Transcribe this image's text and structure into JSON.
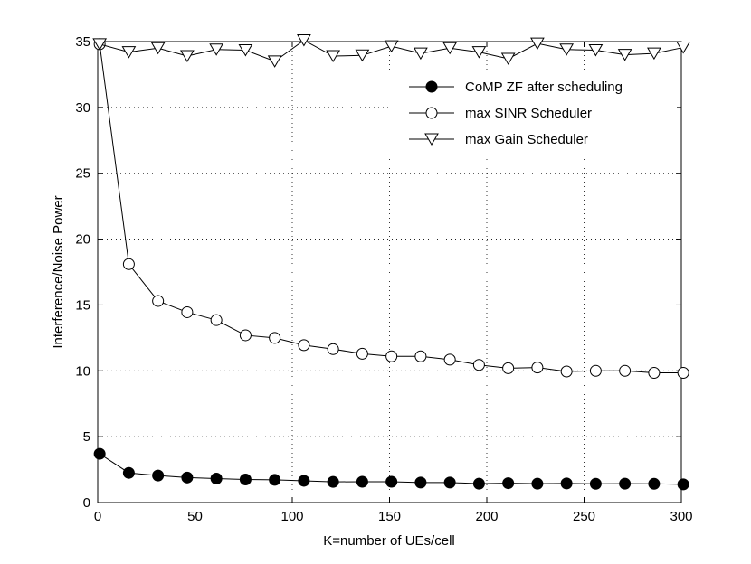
{
  "chart_data": {
    "type": "line",
    "title": "",
    "xlabel": "K=number of UEs/cell",
    "ylabel": "Interference/Noise Power",
    "xlim": [
      0,
      300
    ],
    "ylim": [
      0,
      35
    ],
    "xticks": [
      0,
      50,
      100,
      150,
      200,
      250,
      300
    ],
    "yticks": [
      0,
      5,
      10,
      15,
      20,
      25,
      30,
      35
    ],
    "grid": true,
    "legend_position": "top-right",
    "x": [
      1,
      16,
      31,
      46,
      61,
      76,
      91,
      106,
      121,
      136,
      151,
      166,
      181,
      196,
      211,
      226,
      241,
      256,
      271,
      286,
      301
    ],
    "series": [
      {
        "name": "CoMP ZF after scheduling",
        "marker": "filled-circle",
        "values": [
          3.7,
          2.25,
          2.05,
          1.9,
          1.82,
          1.75,
          1.72,
          1.65,
          1.57,
          1.58,
          1.58,
          1.52,
          1.52,
          1.43,
          1.47,
          1.43,
          1.45,
          1.42,
          1.43,
          1.42,
          1.38
        ]
      },
      {
        "name": "max SINR Scheduler",
        "marker": "open-circle",
        "values": [
          34.8,
          18.1,
          15.3,
          14.45,
          13.85,
          12.7,
          12.5,
          11.95,
          11.65,
          11.3,
          11.1,
          11.1,
          10.85,
          10.45,
          10.2,
          10.25,
          9.95,
          10.0,
          10.0,
          9.85,
          9.85
        ]
      },
      {
        "name": "max Gain Scheduler",
        "marker": "open-triangle-down",
        "values": [
          34.8,
          34.2,
          34.5,
          33.9,
          34.4,
          34.35,
          33.5,
          35.1,
          33.9,
          33.95,
          34.65,
          34.1,
          34.5,
          34.2,
          33.7,
          34.85,
          34.4,
          34.35,
          34.0,
          34.1,
          34.55
        ]
      }
    ]
  }
}
